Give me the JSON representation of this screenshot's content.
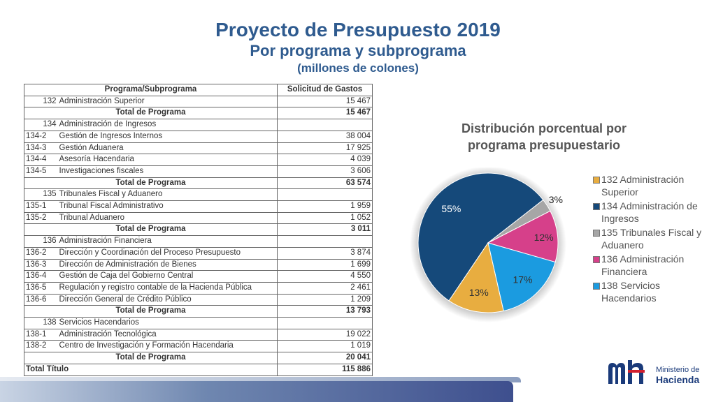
{
  "title": "Proyecto de Presupuesto 2019",
  "subtitle": "Por programa y subprograma",
  "units": "(millones de colones)",
  "table": {
    "headers": [
      "Programa/Subprograma",
      "Solicitud de Gastos"
    ],
    "rows": [
      {
        "type": "head",
        "code": "132",
        "name": "Administración Superior",
        "value": "15 467"
      },
      {
        "type": "total",
        "label": "Total de Programa",
        "value": "15 467"
      },
      {
        "type": "head",
        "code": "134",
        "name": "Administración de Ingresos",
        "value": ""
      },
      {
        "type": "sub",
        "code": "134-2",
        "name": "Gestión de Ingresos Internos",
        "value": "38 004"
      },
      {
        "type": "sub",
        "code": "134-3",
        "name": "Gestión Aduanera",
        "value": "17 925"
      },
      {
        "type": "sub",
        "code": "134-4",
        "name": "Asesoría Hacendaria",
        "value": "4 039"
      },
      {
        "type": "sub",
        "code": "134-5",
        "name": "Investigaciones fiscales",
        "value": "3 606"
      },
      {
        "type": "total",
        "label": "Total de Programa",
        "value": "63 574"
      },
      {
        "type": "head",
        "code": "135",
        "name": "Tribunales Fiscal y Aduanero",
        "value": ""
      },
      {
        "type": "sub",
        "code": "135-1",
        "name": "Tribunal Fiscal Administrativo",
        "value": "1 959"
      },
      {
        "type": "sub",
        "code": "135-2",
        "name": "Tribunal Aduanero",
        "value": "1 052"
      },
      {
        "type": "total",
        "label": "Total de Programa",
        "value": "3 011"
      },
      {
        "type": "head",
        "code": "136",
        "name": "Administración Financiera",
        "value": ""
      },
      {
        "type": "sub",
        "code": "136-2",
        "name": "Dirección y Coordinación del Proceso Presupuesto",
        "value": "3 874"
      },
      {
        "type": "sub",
        "code": "136-3",
        "name": "Dirección de Administración de Bienes",
        "value": "1 699"
      },
      {
        "type": "sub",
        "code": "136-4",
        "name": "Gestión de Caja del Gobierno Central",
        "value": "4 550"
      },
      {
        "type": "sub",
        "code": "136-5",
        "name": "Regulación y registro contable de la Hacienda Pública",
        "value": "2 461"
      },
      {
        "type": "sub",
        "code": "136-6",
        "name": "Dirección General de Crédito Público",
        "value": "1 209"
      },
      {
        "type": "total",
        "label": "Total de Programa",
        "value": "13 793"
      },
      {
        "type": "head",
        "code": "138",
        "name": "Servicios Hacendarios",
        "value": ""
      },
      {
        "type": "sub",
        "code": "138-1",
        "name": "Administración Tecnológica",
        "value": "19 022"
      },
      {
        "type": "sub",
        "code": "138-2",
        "name": "Centro de Investigación y Formación Hacendaria",
        "value": "1 019"
      },
      {
        "type": "total",
        "label": "Total de Programa",
        "value": "20 041"
      },
      {
        "type": "grand",
        "label": "Total Título",
        "value": "115 886"
      }
    ]
  },
  "chart_data": {
    "type": "pie",
    "title": "Distribución porcentual por programa presupuestario",
    "title_lines": [
      "Distribución porcentual por",
      "programa presupuestario"
    ],
    "slices": [
      {
        "name": "132 Administración Superior",
        "value": 13,
        "label": "13%",
        "color": "#e8ad40"
      },
      {
        "name": "134 Administración de Ingresos",
        "value": 55,
        "label": "55%",
        "color": "#15497a"
      },
      {
        "name": "135 Tribunales Fiscal y Aduanero",
        "value": 3,
        "label": "3%",
        "color": "#a6a6a6"
      },
      {
        "name": "136 Administración Financiera",
        "value": 12,
        "label": "12%",
        "color": "#d6408a"
      },
      {
        "name": "138 Servicios Hacendarios",
        "value": 17,
        "label": "17%",
        "color": "#1b9be0"
      }
    ],
    "legend_placement": "right"
  },
  "logo": {
    "line1": "Ministerio de",
    "line2": "Hacienda"
  }
}
